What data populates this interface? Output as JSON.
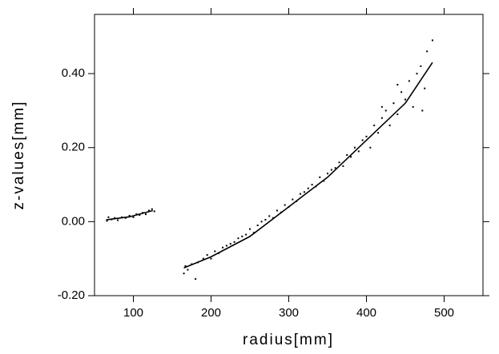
{
  "chart_data": {
    "type": "scatter",
    "xlabel": "radius[mm]",
    "ylabel": "z-values[mm]",
    "xlim": [
      50,
      550
    ],
    "ylim": [
      -0.2,
      0.56
    ],
    "xticks": [
      100,
      200,
      300,
      400,
      500
    ],
    "yticks": [
      {
        "value": -0.2,
        "label": "-0.20"
      },
      {
        "value": 0,
        "label": "0.00"
      },
      {
        "value": 0.2,
        "label": "0.20"
      },
      {
        "value": 0.4,
        "label": "0.40"
      }
    ],
    "series": [
      {
        "type": "scatter",
        "color": "#000000",
        "x": [
          66,
          68,
          72,
          76,
          80,
          85,
          90,
          95,
          100,
          104,
          108,
          112,
          116,
          120,
          124,
          127,
          165,
          167,
          170,
          175,
          180,
          183,
          190,
          195,
          200,
          205,
          210,
          215,
          220,
          225,
          230,
          235,
          240,
          245,
          250,
          255,
          260,
          265,
          270,
          275,
          280,
          285,
          290,
          295,
          300,
          305,
          310,
          315,
          320,
          325,
          330,
          335,
          340,
          345,
          350,
          355,
          360,
          365,
          370,
          375,
          380,
          385,
          390,
          395,
          400,
          405,
          410,
          415,
          420,
          425,
          430,
          435,
          440,
          445,
          450,
          455,
          460,
          465,
          470,
          475,
          478,
          485,
          472,
          440,
          420
        ],
        "values": [
          0.002,
          0.012,
          0.006,
          0.01,
          0.004,
          0.012,
          0.01,
          0.016,
          0.012,
          0.02,
          0.018,
          0.024,
          0.02,
          0.03,
          0.034,
          0.028,
          -0.14,
          -0.12,
          -0.13,
          -0.115,
          -0.155,
          -0.11,
          -0.1,
          -0.09,
          -0.1,
          -0.08,
          -0.085,
          -0.07,
          -0.065,
          -0.06,
          -0.055,
          -0.045,
          -0.04,
          -0.035,
          -0.02,
          -0.03,
          -0.01,
          0.0,
          0.005,
          0.015,
          0.01,
          0.03,
          0.025,
          0.045,
          0.04,
          0.06,
          0.055,
          0.075,
          0.08,
          0.09,
          0.1,
          0.095,
          0.12,
          0.11,
          0.13,
          0.14,
          0.145,
          0.16,
          0.15,
          0.18,
          0.175,
          0.2,
          0.19,
          0.22,
          0.23,
          0.2,
          0.26,
          0.24,
          0.28,
          0.3,
          0.26,
          0.32,
          0.29,
          0.35,
          0.33,
          0.38,
          0.31,
          0.4,
          0.42,
          0.36,
          0.46,
          0.49,
          0.3,
          0.37,
          0.31
        ]
      },
      {
        "type": "line",
        "color": "#000000",
        "x": [
          65,
          95,
          125,
          145,
          165,
          200,
          250,
          300,
          350,
          400,
          450,
          485
        ],
        "values": [
          0.005,
          0.013,
          0.03,
          null,
          -0.125,
          -0.095,
          -0.04,
          0.04,
          0.12,
          0.22,
          0.32,
          0.43
        ]
      }
    ]
  }
}
